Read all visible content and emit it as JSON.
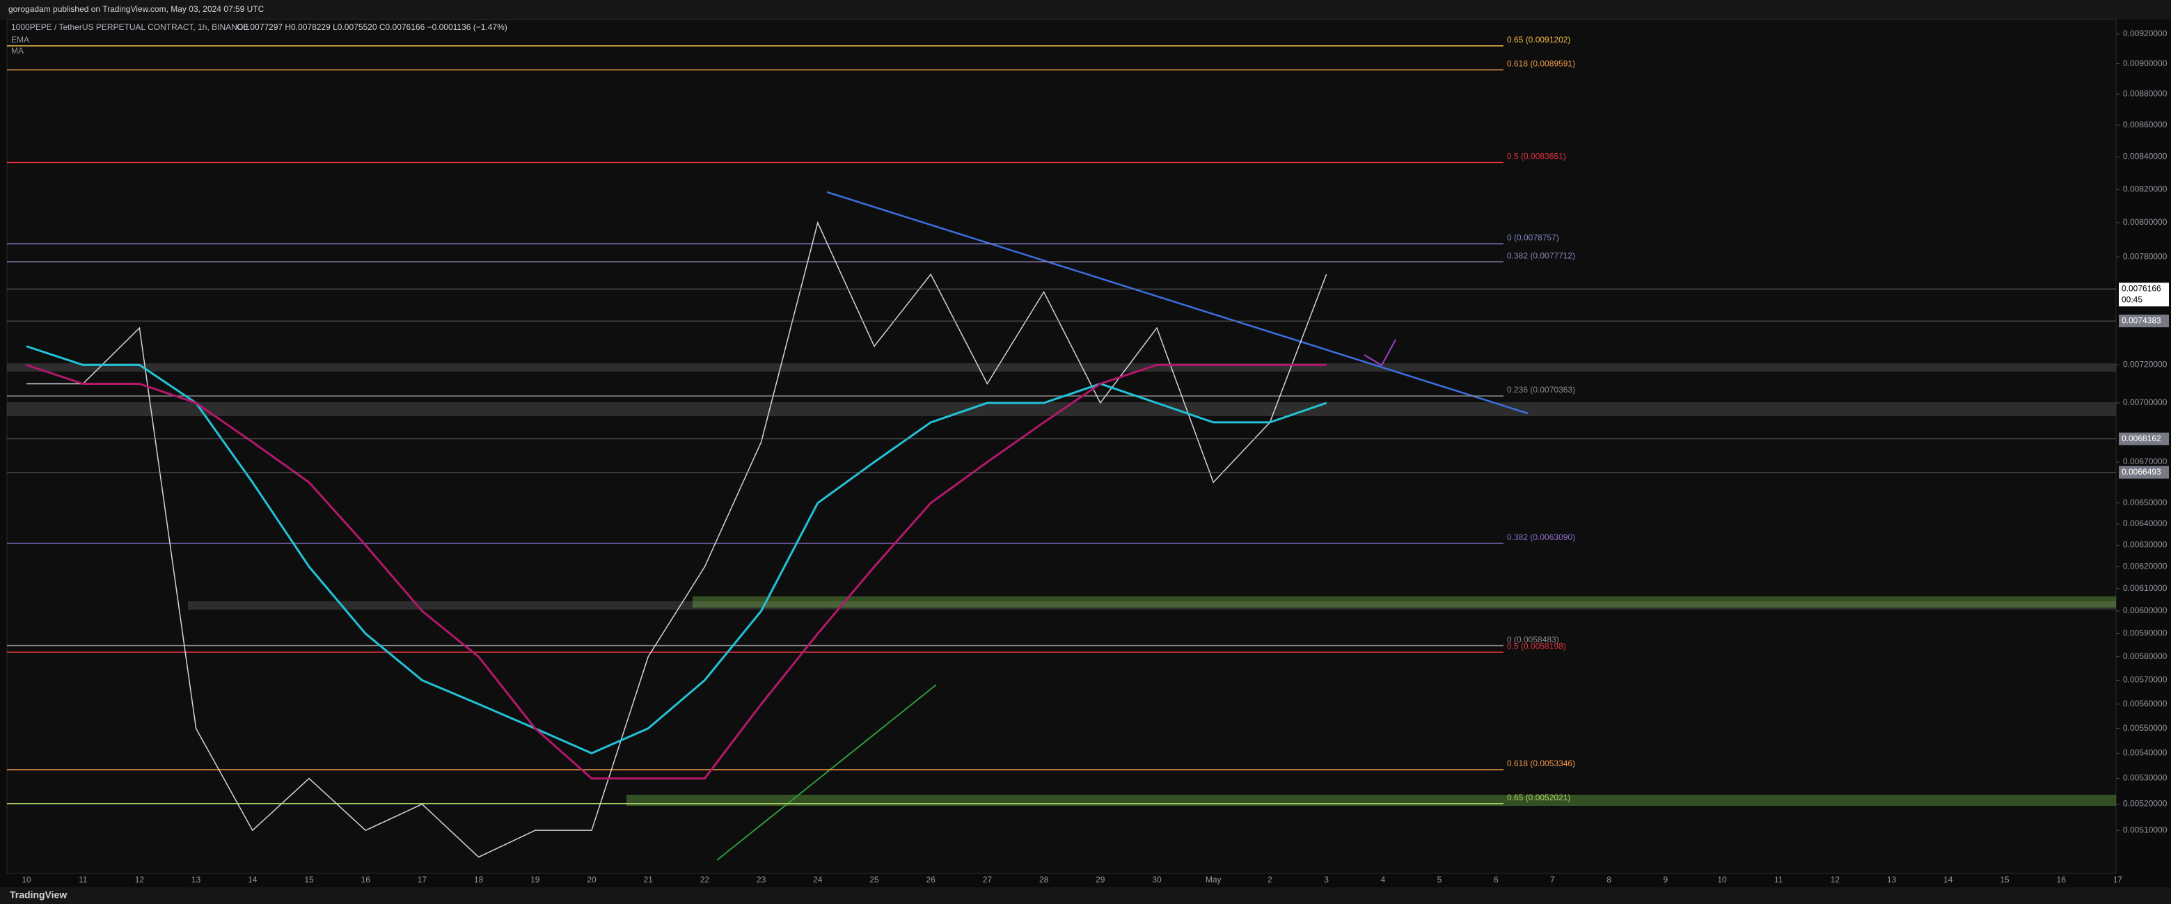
{
  "header": "gorogadam published on TradingView.com, May 03, 2024 07:59 UTC",
  "footer": "TradingView",
  "chart_data": {
    "type": "line",
    "symbol": "1000PEPE / TetherUS PERPETUAL CONTRACT, 1h, BINANCE",
    "ohlc": "O0.0077297 H0.0078229 L0.0075520 C0.0076166 −0.0001136 (−1.47%)",
    "log": true,
    "categories": [
      "10",
      "11",
      "12",
      "13",
      "14",
      "15",
      "16",
      "17",
      "18",
      "19",
      "20",
      "21",
      "22",
      "23",
      "24",
      "25",
      "26",
      "27",
      "28",
      "29",
      "30",
      "May",
      "2",
      "3",
      "4",
      "5",
      "6",
      "7",
      "8",
      "9",
      "10",
      "11",
      "12",
      "13",
      "14",
      "15",
      "16",
      "17"
    ],
    "series": [
      {
        "color": "#d1d4dc",
        "values": [
          0.0071,
          0.0071,
          0.0074,
          0.0055,
          0.0051,
          0.0053,
          0.0051,
          0.0052,
          0.005,
          0.0051,
          0.0051,
          0.0058,
          0.0062,
          0.0068,
          0.008,
          0.0073,
          0.0077,
          0.0071,
          0.0076,
          0.007,
          0.0074,
          0.0066,
          0.0069,
          0.0077,
          null,
          null,
          null,
          null,
          null,
          null,
          null,
          null,
          null,
          null,
          null,
          null,
          null,
          null
        ]
      },
      {
        "name": "EMA",
        "color": "#22c3d6",
        "values": [
          0.0073,
          0.0072,
          0.0072,
          0.007,
          0.0066,
          0.0062,
          0.0059,
          0.0057,
          0.0056,
          0.0055,
          0.0054,
          0.0055,
          0.0057,
          0.006,
          0.0065,
          0.0067,
          0.0069,
          0.007,
          0.007,
          0.0071,
          0.007,
          0.0069,
          0.0069,
          0.007,
          null,
          null,
          null,
          null,
          null,
          null,
          null,
          null,
          null,
          null,
          null,
          null,
          null,
          null
        ]
      },
      {
        "name": "MA",
        "color": "#b3186b",
        "values": [
          0.0072,
          0.0071,
          0.0071,
          0.007,
          0.0068,
          0.0066,
          0.0063,
          0.006,
          0.0058,
          0.0055,
          0.0053,
          0.0053,
          0.0053,
          0.0056,
          0.0059,
          0.0062,
          0.0065,
          0.0067,
          0.0069,
          0.0071,
          0.0072,
          0.0072,
          0.0072,
          0.0072,
          null,
          null,
          null,
          null,
          null,
          null,
          null,
          null,
          null,
          null,
          null,
          null,
          null,
          null
        ]
      }
    ],
    "ylim": [
      0.00494,
      0.0093
    ],
    "yticks": [
      {
        "value": 0.0092,
        "label": "0.00920000"
      },
      {
        "value": 0.009,
        "label": "0.00900000"
      },
      {
        "value": 0.0088,
        "label": "0.00880000"
      },
      {
        "value": 0.0086,
        "label": "0.00860000"
      },
      {
        "value": 0.0084,
        "label": "0.00840000"
      },
      {
        "value": 0.0082,
        "label": "0.00820000"
      },
      {
        "value": 0.008,
        "label": "0.00800000"
      },
      {
        "value": 0.0078,
        "label": "0.00780000"
      },
      {
        "value": 0.0072,
        "label": "0.00720000"
      },
      {
        "value": 0.007,
        "label": "0.00700000"
      },
      {
        "value": 0.0067,
        "label": "0.00670000"
      },
      {
        "value": 0.0065,
        "label": "0.00650000"
      },
      {
        "value": 0.0064,
        "label": "0.00640000"
      },
      {
        "value": 0.0063,
        "label": "0.00630000"
      },
      {
        "value": 0.0062,
        "label": "0.00620000"
      },
      {
        "value": 0.0061,
        "label": "0.00610000"
      },
      {
        "value": 0.006,
        "label": "0.00600000"
      },
      {
        "value": 0.0059,
        "label": "0.00590000"
      },
      {
        "value": 0.0058,
        "label": "0.00580000"
      },
      {
        "value": 0.0057,
        "label": "0.00570000"
      },
      {
        "value": 0.0056,
        "label": "0.00560000"
      },
      {
        "value": 0.0055,
        "label": "0.00550000"
      },
      {
        "value": 0.0054,
        "label": "0.00540000"
      },
      {
        "value": 0.0053,
        "label": "0.00530000"
      },
      {
        "value": 0.0052,
        "label": "0.00520000"
      },
      {
        "value": 0.0051,
        "label": "0.00510000"
      }
    ],
    "levels": [
      {
        "value": 0.0091202,
        "label": "0.65 (0.0091202)",
        "color": "#f0b94a"
      },
      {
        "value": 0.0089591,
        "label": "0.618 (0.0089591)",
        "color": "#f09a4a"
      },
      {
        "value": 0.0083651,
        "label": "0.5 (0.0083651)",
        "color": "#e0333f"
      },
      {
        "value": 0.0078757,
        "label": "0 (0.0078757)",
        "color": "#7f86c8"
      },
      {
        "value": 0.0077712,
        "label": "0.382 (0.0077712)",
        "color": "#9a80b8"
      },
      {
        "value": 0.0070363,
        "label": "0.236 (0.0070363)",
        "color": "#8a8a8a"
      },
      {
        "value": 0.006309,
        "label": "0.382 (0.0063090)",
        "color": "#8a6cc8"
      },
      {
        "value": 0.0058483,
        "label": "0 (0.0058483)",
        "color": "#8a8a8a"
      },
      {
        "value": 0.0058198,
        "label": "0.5 (0.0058198)",
        "color": "#e0333f"
      },
      {
        "value": 0.0053346,
        "label": "0.618 (0.0053346)",
        "color": "#f09a4a"
      },
      {
        "value": 0.0052021,
        "label": "0.65 (0.0052021)",
        "color": "#a8d060"
      }
    ],
    "price_badges": [
      0.0076166,
      0.0074383,
      0.0068162,
      0.0066493
    ],
    "countdown": "00:45"
  }
}
